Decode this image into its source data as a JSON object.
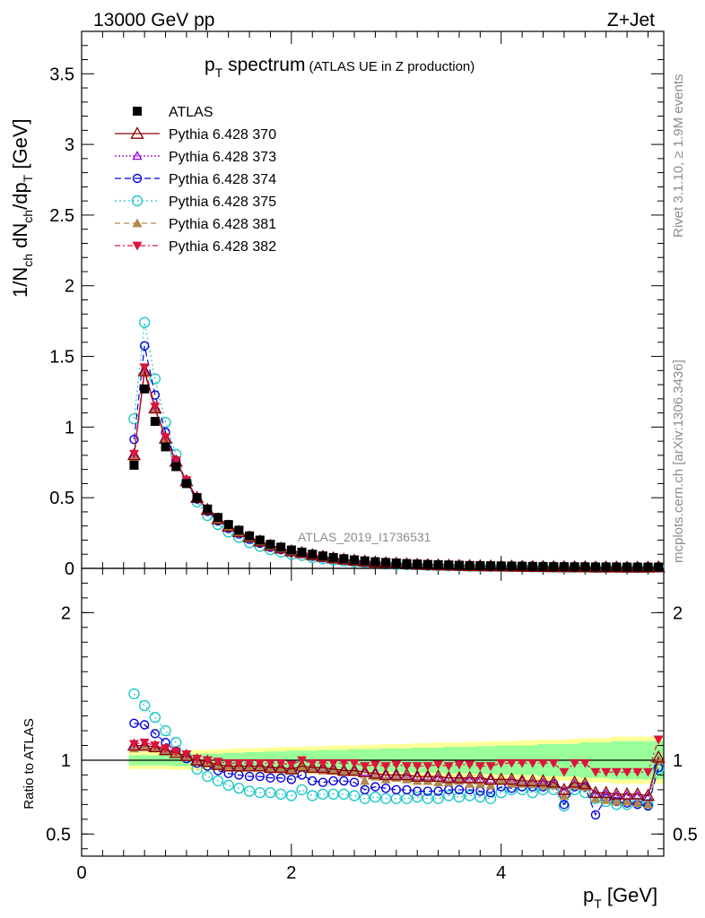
{
  "header": {
    "energy": "13000 GeV pp",
    "process": "Z+Jet",
    "rivet": "Rivet 3.1.10, ≥ 1.9M events",
    "mcplots": "mcplots.cern.ch [arXiv:1306.3436]",
    "analysis": "ATLAS_2019_I1736531"
  },
  "chart_data": {
    "type": "scatter",
    "title": "p_T spectrum (ATLAS UE in Z production)",
    "title_main": "p",
    "title_sub": "T",
    "title_rest": " spectrum",
    "title_note": "(ATLAS UE in Z production)",
    "xlabel": "p_T [GeV]",
    "xlabel_main": "p",
    "xlabel_sub": "T",
    "xlabel_rest": " [GeV]",
    "ylabel": "1/N_ch dN_ch/dp_T [GeV]",
    "ylabel_ratio": "Ratio to ATLAS",
    "xlim": [
      0,
      5.55
    ],
    "ylim": [
      0,
      3.8
    ],
    "ylim_ratio": [
      0.35,
      2.3
    ],
    "x_ticks": [
      0,
      2,
      4
    ],
    "x_tick_labels": [
      "0",
      "2",
      "4"
    ],
    "y_ticks": [
      0,
      0.5,
      1,
      1.5,
      2,
      2.5,
      3,
      3.5
    ],
    "y_tick_labels": [
      "0",
      "0.5",
      "1",
      "1.5",
      "2",
      "2.5",
      "3",
      "3.5"
    ],
    "ratio_ticks": [
      0.5,
      1,
      2
    ],
    "ratio_tick_labels": [
      "0.5",
      "1",
      "2"
    ],
    "x": [
      0.5,
      0.6,
      0.7,
      0.8,
      0.9,
      1.0,
      1.1,
      1.2,
      1.3,
      1.4,
      1.5,
      1.6,
      1.7,
      1.8,
      1.9,
      2.0,
      2.1,
      2.2,
      2.3,
      2.4,
      2.5,
      2.6,
      2.7,
      2.8,
      2.9,
      3.0,
      3.1,
      3.2,
      3.3,
      3.4,
      3.5,
      3.6,
      3.7,
      3.8,
      3.9,
      4.0,
      4.1,
      4.2,
      4.3,
      4.4,
      4.5,
      4.6,
      4.7,
      4.8,
      4.9,
      5.0,
      5.1,
      5.2,
      5.3,
      5.4,
      5.5
    ],
    "atlas": [
      0.73,
      1.27,
      1.04,
      0.86,
      0.72,
      0.6,
      0.5,
      0.42,
      0.36,
      0.31,
      0.27,
      0.23,
      0.2,
      0.17,
      0.15,
      0.13,
      0.115,
      0.1,
      0.088,
      0.077,
      0.068,
      0.06,
      0.053,
      0.047,
      0.042,
      0.038,
      0.034,
      0.031,
      0.028,
      0.026,
      0.024,
      0.022,
      0.02,
      0.019,
      0.018,
      0.017,
      0.016,
      0.015,
      0.014,
      0.013,
      0.012,
      0.012,
      0.011,
      0.011,
      0.01,
      0.01,
      0.01,
      0.009,
      0.009,
      0.009,
      0.009
    ],
    "band_inner": [
      0.035,
      0.035,
      0.035,
      0.035,
      0.04,
      0.04,
      0.04,
      0.045,
      0.045,
      0.05,
      0.05,
      0.055,
      0.055,
      0.06,
      0.06,
      0.065,
      0.065,
      0.065,
      0.07,
      0.07,
      0.07,
      0.075,
      0.075,
      0.075,
      0.08,
      0.08,
      0.08,
      0.085,
      0.085,
      0.085,
      0.09,
      0.09,
      0.09,
      0.095,
      0.095,
      0.1,
      0.1,
      0.1,
      0.1,
      0.11,
      0.11,
      0.11,
      0.11,
      0.12,
      0.12,
      0.12,
      0.13,
      0.13,
      0.13,
      0.13,
      0.13
    ],
    "band_outer": [
      0.06,
      0.06,
      0.06,
      0.06,
      0.065,
      0.065,
      0.07,
      0.07,
      0.075,
      0.075,
      0.08,
      0.08,
      0.085,
      0.085,
      0.09,
      0.09,
      0.09,
      0.095,
      0.095,
      0.1,
      0.1,
      0.1,
      0.105,
      0.105,
      0.11,
      0.11,
      0.11,
      0.115,
      0.115,
      0.12,
      0.12,
      0.12,
      0.125,
      0.125,
      0.13,
      0.13,
      0.13,
      0.135,
      0.135,
      0.14,
      0.14,
      0.14,
      0.145,
      0.15,
      0.15,
      0.15,
      0.16,
      0.16,
      0.16,
      0.16,
      0.16
    ],
    "legend": [
      {
        "label": "ATLAS",
        "marker": "square",
        "color": "#000000",
        "dash": ""
      },
      {
        "label": "Pythia 6.428 370",
        "marker": "triangle-open",
        "color": "#8b0000",
        "dash": ""
      },
      {
        "label": "Pythia 6.428 373",
        "marker": "triangle-open-small",
        "color": "#9400d3",
        "dash": "2,2"
      },
      {
        "label": "Pythia 6.428 374",
        "marker": "circle-open",
        "color": "#0000dd",
        "dash": "7,4"
      },
      {
        "label": "Pythia 6.428 375",
        "marker": "circle-open-large",
        "color": "#20c8c8",
        "dash": "2,3"
      },
      {
        "label": "Pythia 6.428 381",
        "marker": "triangle-filled",
        "color": "#b08850",
        "dash": "6,4"
      },
      {
        "label": "Pythia 6.428 382",
        "marker": "triangle-down-filled",
        "color": "#dc143c",
        "dash": "6,3,2,3"
      }
    ],
    "series": [
      {
        "name": "Pythia 6.428 370",
        "color": "#8b0000",
        "ratio": [
          1.1,
          1.1,
          1.09,
          1.07,
          1.05,
          1.03,
          1.0,
          0.99,
          0.97,
          0.96,
          0.96,
          0.96,
          0.96,
          0.95,
          0.95,
          0.94,
          0.96,
          0.95,
          0.95,
          0.94,
          0.93,
          0.93,
          0.92,
          0.91,
          0.9,
          0.9,
          0.9,
          0.89,
          0.89,
          0.89,
          0.88,
          0.88,
          0.88,
          0.88,
          0.87,
          0.87,
          0.87,
          0.86,
          0.86,
          0.86,
          0.85,
          0.8,
          0.85,
          0.84,
          0.78,
          0.78,
          0.77,
          0.77,
          0.77,
          0.76,
          1.02
        ]
      },
      {
        "name": "Pythia 6.428 373",
        "color": "#9400d3",
        "ratio": [
          1.1,
          1.1,
          1.09,
          1.07,
          1.05,
          1.03,
          1.0,
          0.99,
          0.97,
          0.96,
          0.96,
          0.96,
          0.96,
          0.95,
          0.95,
          0.94,
          0.96,
          0.95,
          0.95,
          0.94,
          0.93,
          0.93,
          0.92,
          0.91,
          0.9,
          0.9,
          0.89,
          0.89,
          0.89,
          0.88,
          0.88,
          0.88,
          0.87,
          0.87,
          0.87,
          0.86,
          0.86,
          0.86,
          0.85,
          0.85,
          0.84,
          0.79,
          0.84,
          0.83,
          0.77,
          0.77,
          0.76,
          0.76,
          0.76,
          0.75,
          1.0
        ]
      },
      {
        "name": "Pythia 6.428 374",
        "color": "#0000dd",
        "ratio": [
          1.25,
          1.24,
          1.18,
          1.12,
          1.06,
          1.01,
          0.98,
          0.96,
          0.93,
          0.91,
          0.9,
          0.89,
          0.89,
          0.88,
          0.88,
          0.87,
          0.9,
          0.86,
          0.85,
          0.86,
          0.86,
          0.85,
          0.8,
          0.82,
          0.81,
          0.8,
          0.8,
          0.79,
          0.79,
          0.79,
          0.8,
          0.8,
          0.8,
          0.79,
          0.78,
          0.82,
          0.81,
          0.82,
          0.82,
          0.82,
          0.84,
          0.7,
          0.82,
          0.82,
          0.63,
          0.74,
          0.72,
          0.71,
          0.7,
          0.69,
          0.95
        ]
      },
      {
        "name": "Pythia 6.428 375",
        "color": "#20c8c8",
        "ratio": [
          1.45,
          1.37,
          1.29,
          1.2,
          1.12,
          1.02,
          0.94,
          0.89,
          0.86,
          0.83,
          0.81,
          0.79,
          0.78,
          0.78,
          0.77,
          0.76,
          0.8,
          0.76,
          0.77,
          0.77,
          0.77,
          0.76,
          0.74,
          0.75,
          0.74,
          0.74,
          0.74,
          0.75,
          0.74,
          0.74,
          0.76,
          0.75,
          0.76,
          0.75,
          0.74,
          0.78,
          0.8,
          0.8,
          0.78,
          0.8,
          0.8,
          0.69,
          0.8,
          0.78,
          0.74,
          0.72,
          0.7,
          0.7,
          0.71,
          0.7,
          0.94
        ]
      },
      {
        "name": "Pythia 6.428 381",
        "color": "#b08850",
        "ratio": [
          1.08,
          1.09,
          1.08,
          1.06,
          1.05,
          1.02,
          0.99,
          0.98,
          0.96,
          0.95,
          0.95,
          0.95,
          0.95,
          0.94,
          0.94,
          0.93,
          0.96,
          0.94,
          0.93,
          0.93,
          0.92,
          0.92,
          0.86,
          0.89,
          0.87,
          0.88,
          0.87,
          0.86,
          0.86,
          0.85,
          0.85,
          0.86,
          0.84,
          0.84,
          0.83,
          0.86,
          0.84,
          0.84,
          0.84,
          0.83,
          0.83,
          0.76,
          0.83,
          0.82,
          0.74,
          0.73,
          0.72,
          0.72,
          0.71,
          0.7,
          1.0
        ]
      },
      {
        "name": "Pythia 6.428 382",
        "color": "#dc143c",
        "ratio": [
          1.11,
          1.12,
          1.1,
          1.08,
          1.06,
          1.04,
          1.01,
          1.0,
          0.99,
          0.98,
          0.98,
          0.98,
          0.98,
          0.98,
          0.98,
          0.97,
          1.0,
          0.98,
          0.98,
          0.98,
          0.98,
          0.98,
          0.96,
          0.97,
          0.96,
          0.97,
          0.96,
          0.96,
          0.96,
          0.97,
          0.96,
          0.97,
          0.97,
          0.96,
          0.96,
          0.98,
          0.98,
          0.98,
          0.98,
          0.98,
          0.98,
          0.92,
          0.98,
          0.98,
          0.92,
          0.92,
          0.92,
          0.92,
          0.92,
          0.92,
          1.14
        ]
      }
    ]
  }
}
